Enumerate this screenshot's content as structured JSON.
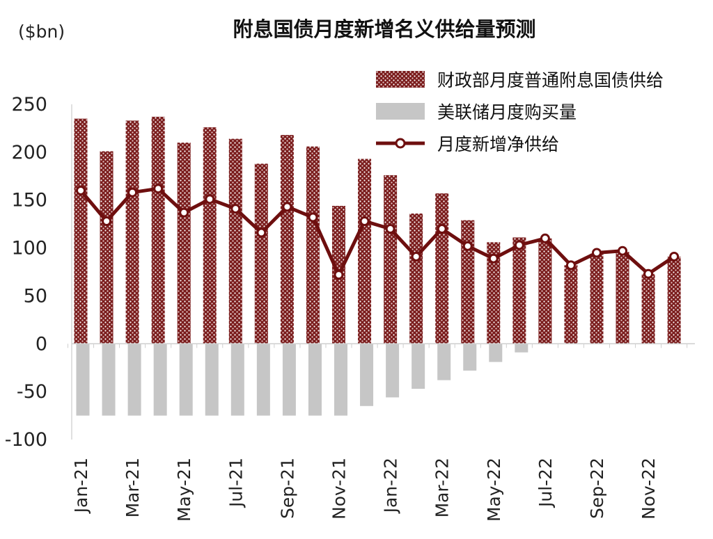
{
  "chart_data": {
    "type": "bar",
    "title": "附息国债月度新增名义供给量预测",
    "ylabel": "($bn)",
    "ylim": [
      -100,
      250
    ],
    "yticks": [
      250,
      200,
      150,
      100,
      50,
      0,
      -50,
      -100
    ],
    "x_tick_labels": [
      "Jan-21",
      "Mar-21",
      "May-21",
      "Jul-21",
      "Sep-21",
      "Nov-21",
      "Jan-22",
      "Mar-22",
      "May-22",
      "Jul-22",
      "Sep-22",
      "Nov-22"
    ],
    "categories": [
      "Jan-21",
      "Feb-21",
      "Mar-21",
      "Apr-21",
      "May-21",
      "Jun-21",
      "Jul-21",
      "Aug-21",
      "Sep-21",
      "Oct-21",
      "Nov-21",
      "Dec-21",
      "Jan-22",
      "Feb-22",
      "Mar-22",
      "Apr-22",
      "May-22",
      "Jun-22",
      "Jul-22",
      "Aug-22",
      "Sep-22",
      "Oct-22",
      "Nov-22",
      "Dec-22"
    ],
    "legend_position": "top-right",
    "grid": false,
    "series": [
      {
        "name": "财政部月度普通附息国债供给",
        "type": "bar",
        "color": "#7a1c1c",
        "values": [
          235,
          201,
          233,
          237,
          210,
          226,
          214,
          188,
          218,
          206,
          144,
          193,
          176,
          136,
          157,
          129,
          106,
          111,
          110,
          82,
          94,
          96,
          73,
          91
        ]
      },
      {
        "name": "美联储月度购买量",
        "type": "bar",
        "color": "#c6c6c6",
        "values": [
          -75,
          -75,
          -75,
          -75,
          -75,
          -75,
          -75,
          -75,
          -75,
          -75,
          -75,
          -65,
          -56,
          -47,
          -38,
          -28,
          -19,
          -9,
          0,
          0,
          0,
          0,
          0,
          0
        ]
      },
      {
        "name": "月度新增净供给",
        "type": "line",
        "color": "#6e0f0f",
        "values": [
          160,
          128,
          158,
          162,
          137,
          151,
          141,
          116,
          143,
          132,
          72,
          128,
          120,
          91,
          120,
          102,
          89,
          103,
          110,
          82,
          95,
          97,
          73,
          91
        ]
      }
    ]
  }
}
